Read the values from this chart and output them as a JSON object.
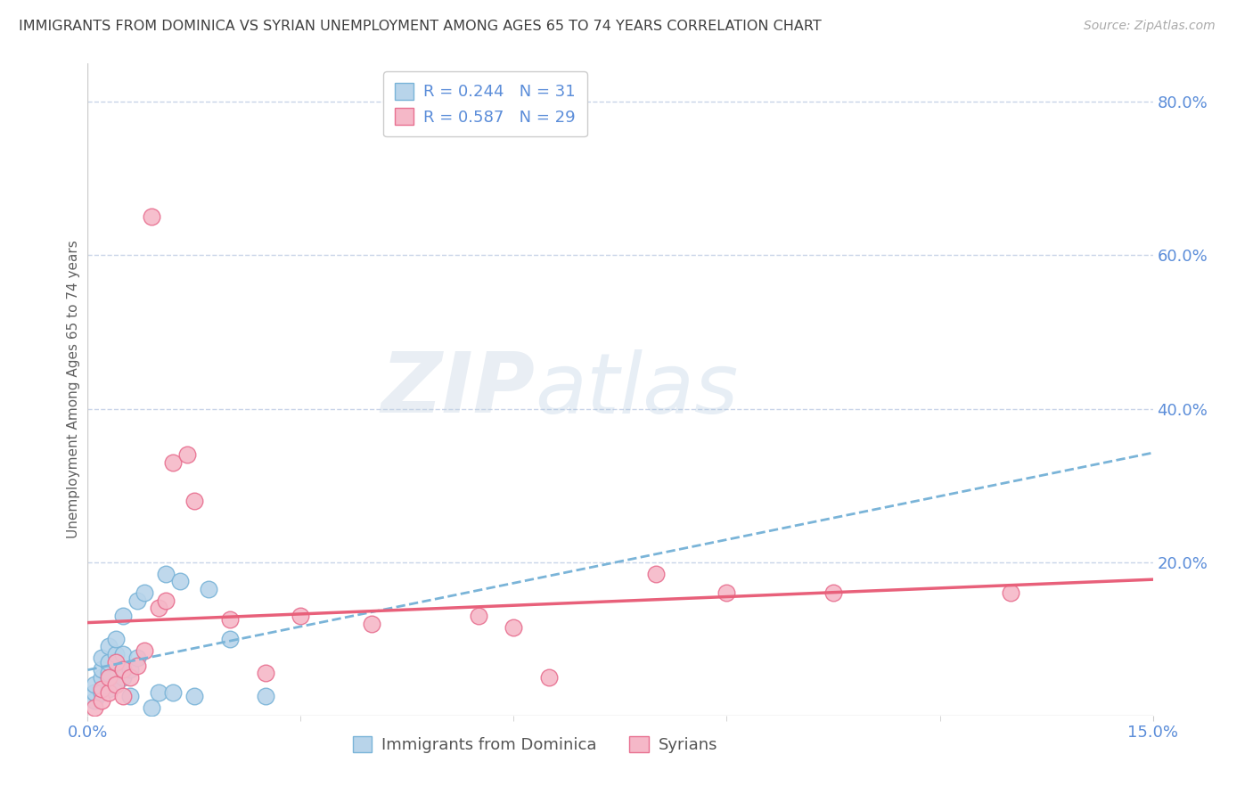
{
  "title": "IMMIGRANTS FROM DOMINICA VS SYRIAN UNEMPLOYMENT AMONG AGES 65 TO 74 YEARS CORRELATION CHART",
  "source": "Source: ZipAtlas.com",
  "ylabel": "Unemployment Among Ages 65 to 74 years",
  "xlim": [
    0.0,
    0.15
  ],
  "ylim": [
    0.0,
    0.85
  ],
  "ytick_labels_right": [
    "20.0%",
    "40.0%",
    "60.0%",
    "80.0%"
  ],
  "ytick_positions_right": [
    0.2,
    0.4,
    0.6,
    0.8
  ],
  "dominica_color": "#b8d4ea",
  "syrian_color": "#f5b8c8",
  "dominica_edge_color": "#7ab4d8",
  "syrian_edge_color": "#e87090",
  "dominica_line_color": "#7ab4d8",
  "syrian_line_color": "#e8607a",
  "legend_dominica": "R = 0.244   N = 31",
  "legend_syrian": "R = 0.587   N = 29",
  "dominica_x": [
    0.001,
    0.001,
    0.001,
    0.002,
    0.002,
    0.002,
    0.002,
    0.003,
    0.003,
    0.003,
    0.003,
    0.004,
    0.004,
    0.004,
    0.005,
    0.005,
    0.005,
    0.006,
    0.006,
    0.007,
    0.007,
    0.008,
    0.009,
    0.01,
    0.011,
    0.012,
    0.013,
    0.015,
    0.017,
    0.02,
    0.025
  ],
  "dominica_y": [
    0.02,
    0.03,
    0.04,
    0.03,
    0.05,
    0.06,
    0.075,
    0.035,
    0.055,
    0.07,
    0.09,
    0.04,
    0.08,
    0.1,
    0.05,
    0.08,
    0.13,
    0.025,
    0.06,
    0.075,
    0.15,
    0.16,
    0.01,
    0.03,
    0.185,
    0.03,
    0.175,
    0.025,
    0.165,
    0.1,
    0.025
  ],
  "syrian_x": [
    0.001,
    0.002,
    0.002,
    0.003,
    0.003,
    0.004,
    0.004,
    0.005,
    0.005,
    0.006,
    0.007,
    0.008,
    0.009,
    0.01,
    0.011,
    0.012,
    0.014,
    0.015,
    0.02,
    0.025,
    0.03,
    0.04,
    0.055,
    0.06,
    0.065,
    0.08,
    0.09,
    0.105,
    0.13
  ],
  "syrian_y": [
    0.01,
    0.02,
    0.035,
    0.03,
    0.05,
    0.04,
    0.07,
    0.025,
    0.06,
    0.05,
    0.065,
    0.085,
    0.65,
    0.14,
    0.15,
    0.33,
    0.34,
    0.28,
    0.125,
    0.055,
    0.13,
    0.12,
    0.13,
    0.115,
    0.05,
    0.185,
    0.16,
    0.16,
    0.16
  ],
  "watermark_zip": "ZIP",
  "watermark_atlas": "atlas",
  "background_color": "#ffffff",
  "grid_color": "#c8d4e8",
  "title_color": "#404040",
  "axis_label_color": "#606060",
  "tick_color": "#5b8dd9",
  "source_color": "#aaaaaa"
}
